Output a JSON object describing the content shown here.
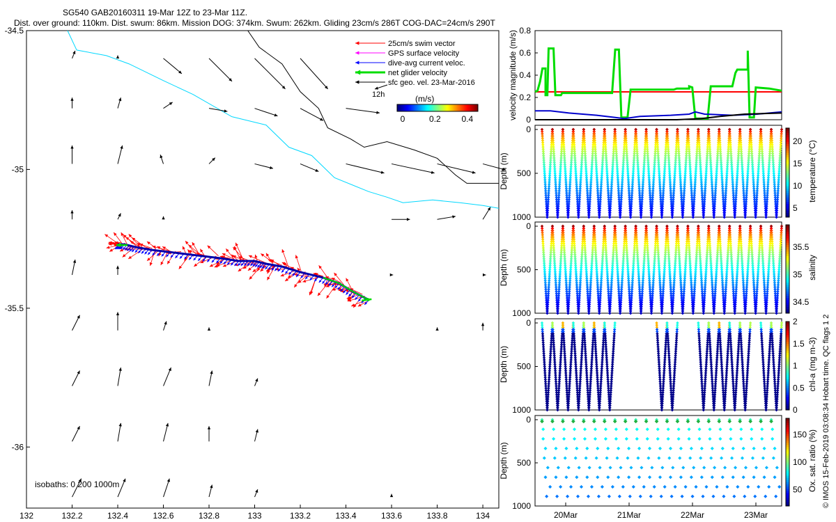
{
  "header": {
    "line1": "SG540 GAB20160311 19-Mar 12Z to 23-Mar 11Z.",
    "line2": "Dist. over ground: 110km. Dist. swum: 86km. Mission DOG: 374km. Swum: 262km. Gliding 23cm/s 286T COG-DAC=24cm/s 290T"
  },
  "copyright": "© IMOS 15-Feb-2019 03:08:34 Hobart time. QC flags 1  2",
  "colors": {
    "swim": "#ff0000",
    "gps": "#ff00ff",
    "dac": "#0000ff",
    "net": "#00dd00",
    "sfc": "#000000",
    "isobath200": "#00d8ff",
    "isobath1000": "#000000"
  },
  "chart_data": [
    {
      "type": "map",
      "legend": [
        {
          "label": "25cm/s swim vector",
          "color": "#ff0000"
        },
        {
          "label": "GPS surface velocity",
          "color": "#ff00ff"
        },
        {
          "label": "dive-avg current veloc.",
          "color": "#0000ff"
        },
        {
          "label": "net glider velocity",
          "color": "#00dd00"
        },
        {
          "label": "sfc geo. vel. 23-Mar-2016",
          "color": "#000000"
        }
      ],
      "scale_arrow_label": "12h",
      "colorbar": {
        "label": "(m/s)",
        "ticks": [
          "0",
          "0.2",
          "0.4"
        ],
        "range": [
          0,
          0.5
        ],
        "colormap": "jet"
      },
      "xticks": [
        "132",
        "132.2",
        "132.4",
        "132.6",
        "132.8",
        "133",
        "133.2",
        "133.4",
        "133.6",
        "133.8",
        "134"
      ],
      "yticks": [
        "-34.5",
        "-35",
        "-35.5",
        "-36"
      ],
      "xlim": [
        132.0,
        134.07
      ],
      "ylim": [
        -36.22,
        -34.5
      ],
      "isobath_label": "isobaths: 0   200  1000m",
      "isobath_200": [
        [
          132.18,
          -34.5
        ],
        [
          132.22,
          -34.57
        ],
        [
          132.35,
          -34.59
        ],
        [
          132.45,
          -34.62
        ],
        [
          132.6,
          -34.68
        ],
        [
          132.73,
          -34.73
        ],
        [
          132.9,
          -34.81
        ],
        [
          133.05,
          -34.84
        ],
        [
          133.15,
          -34.92
        ],
        [
          133.25,
          -34.95
        ],
        [
          133.35,
          -35.03
        ],
        [
          133.5,
          -35.08
        ],
        [
          133.58,
          -35.1
        ],
        [
          133.65,
          -35.12
        ],
        [
          133.78,
          -35.11
        ],
        [
          133.9,
          -35.12
        ],
        [
          134.0,
          -35.13
        ],
        [
          134.07,
          -35.14
        ]
      ],
      "isobath_1000": [
        [
          132.97,
          -34.5
        ],
        [
          133.02,
          -34.56
        ],
        [
          133.12,
          -34.62
        ],
        [
          133.2,
          -34.72
        ],
        [
          133.28,
          -34.78
        ],
        [
          133.32,
          -34.85
        ],
        [
          133.42,
          -34.89
        ],
        [
          133.48,
          -34.92
        ],
        [
          133.58,
          -34.9
        ],
        [
          133.7,
          -34.93
        ],
        [
          133.8,
          -34.96
        ],
        [
          133.88,
          -35.02
        ],
        [
          133.93,
          -35.05
        ],
        [
          134.0,
          -35.05
        ],
        [
          134.07,
          -35.05
        ]
      ],
      "track": [
        [
          133.5,
          -35.47
        ],
        [
          133.43,
          -35.44
        ],
        [
          133.37,
          -35.41
        ],
        [
          133.3,
          -35.39
        ],
        [
          133.2,
          -35.37
        ],
        [
          133.12,
          -35.35
        ],
        [
          133.05,
          -35.34
        ],
        [
          133.0,
          -35.33
        ],
        [
          132.93,
          -35.33
        ],
        [
          132.85,
          -35.32
        ],
        [
          132.75,
          -35.31
        ],
        [
          132.65,
          -35.3
        ],
        [
          132.55,
          -35.29
        ],
        [
          132.48,
          -35.28
        ],
        [
          132.43,
          -35.27
        ],
        [
          132.4,
          -35.27
        ]
      ],
      "sfc_vectors": [
        {
          "lon": 132.2,
          "lat": -34.6,
          "u": 0.02,
          "v": 0.05
        },
        {
          "lon": 132.4,
          "lat": -34.6,
          "u": 0.0,
          "v": 0.02
        },
        {
          "lon": 132.6,
          "lat": -34.6,
          "u": 0.12,
          "v": -0.1
        },
        {
          "lon": 132.8,
          "lat": -34.6,
          "u": 0.15,
          "v": -0.15
        },
        {
          "lon": 133.0,
          "lat": -34.6,
          "u": 0.2,
          "v": -0.2
        },
        {
          "lon": 133.2,
          "lat": -34.6,
          "u": 0.18,
          "v": -0.2
        },
        {
          "lon": 132.2,
          "lat": -34.78,
          "u": 0.0,
          "v": 0.07
        },
        {
          "lon": 132.4,
          "lat": -34.78,
          "u": 0.02,
          "v": 0.07
        },
        {
          "lon": 132.6,
          "lat": -34.78,
          "u": 0.06,
          "v": 0.04
        },
        {
          "lon": 132.8,
          "lat": -34.78,
          "u": 0.12,
          "v": -0.02
        },
        {
          "lon": 133.0,
          "lat": -34.78,
          "u": 0.15,
          "v": -0.05
        },
        {
          "lon": 133.2,
          "lat": -34.78,
          "u": 0.15,
          "v": -0.08
        },
        {
          "lon": 133.4,
          "lat": -34.78,
          "u": 0.22,
          "v": -0.03
        },
        {
          "lon": 132.2,
          "lat": -34.98,
          "u": 0.0,
          "v": 0.12
        },
        {
          "lon": 132.4,
          "lat": -34.98,
          "u": 0.03,
          "v": 0.12
        },
        {
          "lon": 132.6,
          "lat": -34.98,
          "u": -0.02,
          "v": 0.06
        },
        {
          "lon": 132.8,
          "lat": -34.98,
          "u": 0.04,
          "v": 0.04
        },
        {
          "lon": 133.0,
          "lat": -34.98,
          "u": 0.12,
          "v": -0.03
        },
        {
          "lon": 133.2,
          "lat": -34.98,
          "u": 0.12,
          "v": -0.05
        },
        {
          "lon": 133.4,
          "lat": -34.98,
          "u": 0.25,
          "v": -0.06
        },
        {
          "lon": 133.6,
          "lat": -34.98,
          "u": 0.28,
          "v": -0.06
        },
        {
          "lon": 133.8,
          "lat": -34.98,
          "u": 0.25,
          "v": -0.06
        },
        {
          "lon": 134.0,
          "lat": -34.98,
          "u": 0.15,
          "v": -0.04
        },
        {
          "lon": 132.2,
          "lat": -35.18,
          "u": 0.0,
          "v": 0.06
        },
        {
          "lon": 132.4,
          "lat": -35.18,
          "u": 0.02,
          "v": 0.04
        },
        {
          "lon": 132.6,
          "lat": -35.18,
          "u": 0.0,
          "v": 0.02
        },
        {
          "lon": 133.6,
          "lat": -35.18,
          "u": 0.12,
          "v": 0.0
        },
        {
          "lon": 133.8,
          "lat": -35.18,
          "u": 0.12,
          "v": 0.02
        },
        {
          "lon": 134.0,
          "lat": -35.18,
          "u": 0.05,
          "v": 0.08
        },
        {
          "lon": 132.2,
          "lat": -35.38,
          "u": 0.02,
          "v": 0.1
        },
        {
          "lon": 132.4,
          "lat": -35.38,
          "u": 0.0,
          "v": 0.06
        },
        {
          "lon": 133.6,
          "lat": -35.38,
          "u": 0.01,
          "v": 0.0
        },
        {
          "lon": 134.0,
          "lat": -35.38,
          "u": 0.02,
          "v": 0.0
        },
        {
          "lon": 132.2,
          "lat": -35.58,
          "u": 0.05,
          "v": 0.1
        },
        {
          "lon": 132.4,
          "lat": -35.58,
          "u": 0.0,
          "v": 0.12
        },
        {
          "lon": 132.6,
          "lat": -35.58,
          "u": 0.02,
          "v": 0.06
        },
        {
          "lon": 132.8,
          "lat": -35.58,
          "u": 0.0,
          "v": 0.02
        },
        {
          "lon": 133.8,
          "lat": -35.58,
          "u": 0.0,
          "v": 0.02
        },
        {
          "lon": 134.0,
          "lat": -35.58,
          "u": 0.0,
          "v": 0.05
        },
        {
          "lon": 132.2,
          "lat": -35.78,
          "u": 0.05,
          "v": 0.1
        },
        {
          "lon": 132.4,
          "lat": -35.78,
          "u": 0.02,
          "v": 0.12
        },
        {
          "lon": 132.6,
          "lat": -35.78,
          "u": 0.05,
          "v": 0.12
        },
        {
          "lon": 132.8,
          "lat": -35.78,
          "u": 0.02,
          "v": 0.1
        },
        {
          "lon": 133.0,
          "lat": -35.78,
          "u": 0.02,
          "v": 0.05
        },
        {
          "lon": 132.2,
          "lat": -35.98,
          "u": 0.05,
          "v": 0.1
        },
        {
          "lon": 132.4,
          "lat": -35.98,
          "u": 0.02,
          "v": 0.12
        },
        {
          "lon": 132.6,
          "lat": -35.98,
          "u": 0.03,
          "v": 0.12
        },
        {
          "lon": 132.8,
          "lat": -35.98,
          "u": 0.0,
          "v": 0.1
        },
        {
          "lon": 133.0,
          "lat": -35.98,
          "u": 0.02,
          "v": 0.08
        },
        {
          "lon": 132.2,
          "lat": -36.18,
          "u": 0.06,
          "v": 0.12
        },
        {
          "lon": 132.4,
          "lat": -36.18,
          "u": 0.05,
          "v": 0.12
        },
        {
          "lon": 132.6,
          "lat": -36.18,
          "u": 0.04,
          "v": 0.12
        },
        {
          "lon": 132.8,
          "lat": -36.18,
          "u": 0.02,
          "v": 0.08
        },
        {
          "lon": 133.0,
          "lat": -36.18,
          "u": 0.02,
          "v": 0.05
        },
        {
          "lon": 133.6,
          "lat": -36.18,
          "u": 0.0,
          "v": 0.02
        }
      ]
    },
    {
      "type": "line",
      "ylabel": "velocity magnitude (m/s)",
      "ylim": [
        0,
        0.8
      ],
      "yticks": [
        "0",
        "0.2",
        "0.4",
        "0.6",
        "0.8"
      ],
      "xlim": [
        0,
        4
      ],
      "series": [
        {
          "color": "#ff0000",
          "points": [
            [
              0,
              0.25
            ],
            [
              4,
              0.25
            ]
          ]
        },
        {
          "color": "#00dd00",
          "points": [
            [
              0,
              0.25
            ],
            [
              0.04,
              0.26
            ],
            [
              0.08,
              0.34
            ],
            [
              0.12,
              0.46
            ],
            [
              0.17,
              0.46
            ],
            [
              0.17,
              0.22
            ],
            [
              0.2,
              0.22
            ],
            [
              0.22,
              0.64
            ],
            [
              0.3,
              0.64
            ],
            [
              0.33,
              0.22
            ],
            [
              0.42,
              0.22
            ],
            [
              0.44,
              0.24
            ],
            [
              1.25,
              0.24
            ],
            [
              1.3,
              0.63
            ],
            [
              1.36,
              0.63
            ],
            [
              1.4,
              0.02
            ],
            [
              1.5,
              0.02
            ],
            [
              1.55,
              0.27
            ],
            [
              2.25,
              0.27
            ],
            [
              2.3,
              0.28
            ],
            [
              2.5,
              0.28
            ],
            [
              2.5,
              0.3
            ],
            [
              2.55,
              0.29
            ],
            [
              2.6,
              0.01
            ],
            [
              2.8,
              0.01
            ],
            [
              2.85,
              0.3
            ],
            [
              2.9,
              0.3
            ],
            [
              3.2,
              0.3
            ],
            [
              3.25,
              0.42
            ],
            [
              3.28,
              0.45
            ],
            [
              3.45,
              0.45
            ],
            [
              3.45,
              0.62
            ],
            [
              3.48,
              0.02
            ],
            [
              3.55,
              0.02
            ],
            [
              3.58,
              0.29
            ],
            [
              3.8,
              0.28
            ],
            [
              4,
              0.26
            ]
          ]
        },
        {
          "color": "#0000cc",
          "points": [
            [
              0,
              0.08
            ],
            [
              0.25,
              0.08
            ],
            [
              0.55,
              0.06
            ],
            [
              1.0,
              0.04
            ],
            [
              1.3,
              0.02
            ],
            [
              1.45,
              0.01
            ],
            [
              1.7,
              0.03
            ],
            [
              2.2,
              0.04
            ],
            [
              2.5,
              0.05
            ],
            [
              2.6,
              0.07
            ],
            [
              2.75,
              0.05
            ],
            [
              3.2,
              0.04
            ],
            [
              3.6,
              0.05
            ],
            [
              4,
              0.07
            ]
          ]
        },
        {
          "color": "#000000",
          "points": [
            [
              0,
              0.0
            ],
            [
              2.3,
              0.0
            ],
            [
              2.7,
              0.01
            ],
            [
              3.0,
              0.03
            ],
            [
              3.4,
              0.05
            ],
            [
              4,
              0.06
            ]
          ]
        }
      ]
    },
    {
      "type": "scatter",
      "variable": "temperature",
      "colorbar_label": "temperature (°C)",
      "colorbar_ticks": [
        "5",
        "10",
        "15",
        "20"
      ],
      "crange": [
        3,
        23
      ],
      "ylabel": "Depth (m)",
      "yticks": [
        "0",
        "500",
        "1000"
      ],
      "ylim": [
        1000,
        0
      ],
      "profiles": 23,
      "max_depth": [
        1000,
        1000,
        1000,
        1000,
        1000,
        1000,
        1000,
        1000,
        1000,
        1000,
        1000,
        1000,
        1000,
        1000,
        1000,
        1000,
        1000,
        1000,
        1000,
        1000,
        1000,
        1000,
        1000
      ]
    },
    {
      "type": "scatter",
      "variable": "salinity",
      "colorbar_label": "salinity",
      "colorbar_ticks": [
        "34.5",
        "35",
        "35.5"
      ],
      "crange": [
        34.3,
        35.9
      ],
      "ylabel": "Depth (m)",
      "yticks": [
        "0",
        "500",
        "1000"
      ],
      "ylim": [
        1000,
        0
      ],
      "profiles": 23,
      "max_depth": [
        1000,
        1000,
        1000,
        1000,
        1000,
        1000,
        1000,
        1000,
        1000,
        1000,
        1000,
        1000,
        1000,
        1000,
        1000,
        1000,
        1000,
        1000,
        1000,
        1000,
        1000,
        1000,
        1000
      ]
    },
    {
      "type": "scatter",
      "variable": "chl-a",
      "colorbar_label": "chl-a (mg m-3)",
      "colorbar_ticks": [
        "0",
        "0.5",
        "1",
        "1.5",
        "2"
      ],
      "crange": [
        0,
        2
      ],
      "ylabel": "Depth (m)",
      "yticks": [
        "0",
        "500",
        "1000"
      ],
      "ylim": [
        1000,
        0
      ],
      "profiles": 23,
      "max_depth": [
        1000,
        1000,
        1000,
        1000,
        1000,
        1000,
        1000,
        0,
        0,
        0,
        0,
        1000,
        1000,
        0,
        0,
        1000,
        1000,
        1000,
        1000,
        1000,
        0,
        1000,
        1000
      ]
    },
    {
      "type": "scatter",
      "variable": "Ox. sat. ratio",
      "colorbar_label": "Ox. sat. ratio (%)",
      "colorbar_ticks": [
        "50",
        "100",
        "150"
      ],
      "crange": [
        20,
        180
      ],
      "ylabel": "Depth (m)",
      "yticks": [
        "0",
        "500",
        "1000"
      ],
      "ylim": [
        1000,
        0
      ],
      "profiles": 23
    },
    {
      "type": "axis",
      "xticks": [
        "20Mar",
        "21Mar",
        "22Mar",
        "23Mar"
      ]
    }
  ]
}
